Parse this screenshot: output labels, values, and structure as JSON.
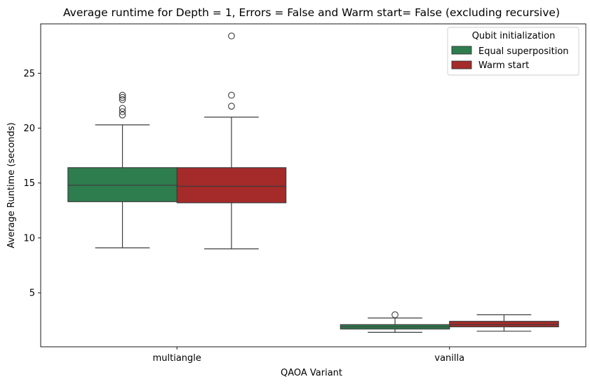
{
  "chart_data": {
    "type": "box",
    "title": "Average runtime for Depth = 1, Errors = False and Warm start= False (excluding recursive)",
    "xlabel": "QAOA Variant",
    "ylabel": "Average Runtime (seconds)",
    "categories": [
      "multiangle",
      "vanilla"
    ],
    "yticks": [
      5,
      10,
      15,
      20,
      25
    ],
    "ylim": [
      0.08,
      29.5
    ],
    "grid": false,
    "legend": {
      "title": "Qubit initialization",
      "position": "top-right"
    },
    "series": [
      {
        "name": "Equal superposition",
        "color": "#2e7d4f",
        "boxes": [
          {
            "category": "multiangle",
            "whisker_low": 9.1,
            "q1": 13.3,
            "median": 14.8,
            "q3": 16.4,
            "whisker_high": 20.3,
            "outliers": [
              21.2,
              21.5,
              21.8,
              22.6,
              22.8,
              23.0
            ]
          },
          {
            "category": "vanilla",
            "whisker_low": 1.4,
            "q1": 1.7,
            "median": 1.9,
            "q3": 2.1,
            "whisker_high": 2.7,
            "outliers": [
              3.0
            ]
          }
        ]
      },
      {
        "name": "Warm start",
        "color": "#a52a2a",
        "boxes": [
          {
            "category": "multiangle",
            "whisker_low": 9.0,
            "q1": 13.2,
            "median": 14.7,
            "q3": 16.4,
            "whisker_high": 21.0,
            "outliers": [
              22.0,
              23.0,
              28.4
            ]
          },
          {
            "category": "vanilla",
            "whisker_low": 1.5,
            "q1": 1.9,
            "median": 2.1,
            "q3": 2.4,
            "whisker_high": 3.0,
            "outliers": []
          }
        ]
      }
    ]
  }
}
